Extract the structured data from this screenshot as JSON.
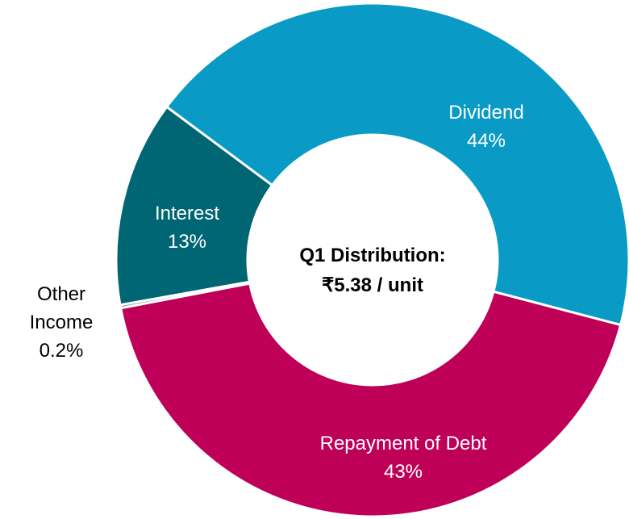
{
  "chart_data": {
    "type": "donut",
    "title": "Q1 Distribution:",
    "subtitle": "₹5.38 / unit",
    "categories": [
      "Dividend",
      "Repayment of Debt",
      "Other Income",
      "Interest"
    ],
    "values": [
      44,
      43,
      0.2,
      13
    ],
    "value_labels": [
      "44%",
      "43%",
      "0.2%",
      "13%"
    ],
    "colors": [
      "#0a9ac6",
      "#be0058",
      "#8c8c8c",
      "#006673"
    ]
  }
}
